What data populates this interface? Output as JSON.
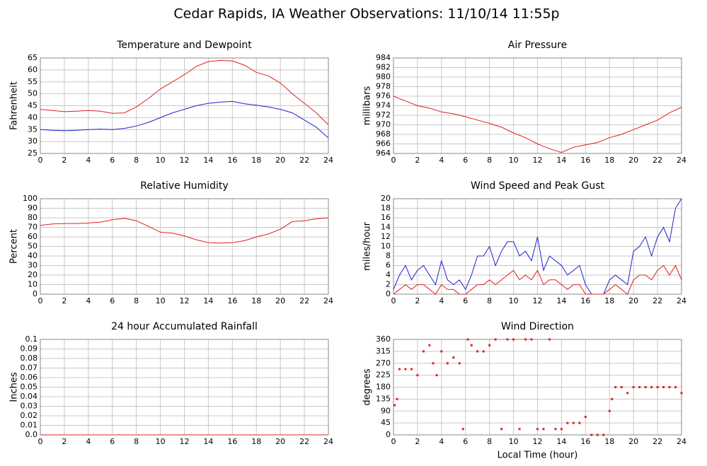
{
  "title": "Cedar Rapids, IA Weather Observations: 11/10/14 11:55p",
  "chart_data": [
    {
      "type": "line",
      "title": "Temperature and Dewpoint",
      "ylabel": "Fahrenheit",
      "x": [
        0,
        1,
        2,
        3,
        4,
        5,
        6,
        7,
        8,
        9,
        10,
        11,
        12,
        13,
        14,
        15,
        16,
        17,
        18,
        19,
        20,
        21,
        22,
        23,
        24
      ],
      "series": [
        {
          "color": "#e02020",
          "values": [
            43.5,
            43,
            42.5,
            42.7,
            43,
            42.7,
            41.8,
            42,
            44.5,
            48,
            52,
            55,
            58,
            61.5,
            63.5,
            64,
            63.8,
            62,
            59,
            57.5,
            54.5,
            50,
            46,
            42,
            37
          ]
        },
        {
          "color": "#2020d0",
          "values": [
            35,
            34.7,
            34.5,
            34.7,
            35,
            35.2,
            35,
            35.5,
            36.5,
            38,
            40,
            42,
            43.5,
            45,
            46,
            46.5,
            46.8,
            45.8,
            45.2,
            44.5,
            43.5,
            42,
            39,
            36,
            31.5
          ]
        }
      ],
      "xlim": [
        0,
        24
      ],
      "xticks": [
        0,
        2,
        4,
        6,
        8,
        10,
        12,
        14,
        16,
        18,
        20,
        22,
        24
      ],
      "ylim": [
        25,
        65
      ],
      "yticks": [
        25,
        30,
        35,
        40,
        45,
        50,
        55,
        60,
        65
      ],
      "grid": true
    },
    {
      "type": "line",
      "title": "Air Pressure",
      "ylabel": "millibars",
      "x": [
        0,
        1,
        2,
        3,
        4,
        5,
        6,
        7,
        8,
        9,
        10,
        11,
        12,
        13,
        14,
        15,
        16,
        17,
        18,
        19,
        20,
        21,
        22,
        23,
        24
      ],
      "series": [
        {
          "color": "#e02020",
          "values": [
            976,
            975,
            974,
            973.5,
            972.7,
            972.3,
            971.7,
            971,
            970.3,
            969.5,
            968.3,
            967.3,
            966,
            965,
            964.2,
            965.3,
            965.8,
            966.3,
            967.3,
            968,
            969,
            970,
            971,
            972.5,
            973.7
          ]
        }
      ],
      "xlim": [
        0,
        24
      ],
      "xticks": [
        0,
        2,
        4,
        6,
        8,
        10,
        12,
        14,
        16,
        18,
        20,
        22,
        24
      ],
      "ylim": [
        964,
        984
      ],
      "yticks": [
        964,
        966,
        968,
        970,
        972,
        974,
        976,
        978,
        980,
        982,
        984
      ],
      "grid": true
    },
    {
      "type": "line",
      "title": "Relative Humidity",
      "ylabel": "Percent",
      "x": [
        0,
        1,
        2,
        3,
        4,
        5,
        6,
        7,
        8,
        9,
        10,
        11,
        12,
        13,
        14,
        15,
        16,
        17,
        18,
        19,
        20,
        21,
        22,
        23,
        24
      ],
      "series": [
        {
          "color": "#e02020",
          "values": [
            72,
            73.5,
            74,
            74,
            74.5,
            75.5,
            78,
            79.5,
            77,
            71,
            65,
            64,
            61,
            57,
            54,
            53.5,
            54,
            56,
            60,
            63,
            68,
            76,
            77,
            79,
            80
          ]
        }
      ],
      "xlim": [
        0,
        24
      ],
      "xticks": [
        0,
        2,
        4,
        6,
        8,
        10,
        12,
        14,
        16,
        18,
        20,
        22,
        24
      ],
      "ylim": [
        0,
        100
      ],
      "yticks": [
        0,
        10,
        20,
        30,
        40,
        50,
        60,
        70,
        80,
        90,
        100
      ],
      "grid": true
    },
    {
      "type": "line",
      "title": "Wind Speed and Peak Gust",
      "ylabel": "miles/hour",
      "x": [
        0,
        0.5,
        1,
        1.5,
        2,
        2.5,
        3,
        3.5,
        4,
        4.5,
        5,
        5.5,
        6,
        6.5,
        7,
        7.5,
        8,
        8.5,
        9,
        9.5,
        10,
        10.5,
        11,
        11.5,
        12,
        12.5,
        13,
        13.5,
        14,
        14.5,
        15,
        15.5,
        16,
        16.5,
        17,
        17.5,
        18,
        18.5,
        19,
        19.5,
        20,
        20.5,
        21,
        21.5,
        22,
        22.5,
        23,
        23.5,
        24
      ],
      "series": [
        {
          "color": "#2020d0",
          "values": [
            1,
            4,
            6,
            3,
            5,
            6,
            4,
            2,
            7,
            3,
            2,
            3,
            1,
            4,
            8,
            8,
            10,
            6,
            9,
            11,
            11,
            8,
            9,
            7,
            12,
            5,
            8,
            7,
            6,
            4,
            5,
            6,
            2,
            0,
            0,
            0,
            3,
            4,
            3,
            2,
            9,
            10,
            12,
            8,
            12,
            14,
            11,
            18,
            20
          ]
        },
        {
          "color": "#e02020",
          "values": [
            0,
            1,
            2,
            1,
            2,
            2,
            1,
            0,
            2,
            1,
            1,
            0,
            0,
            1,
            2,
            2,
            3,
            2,
            3,
            4,
            5,
            3,
            4,
            3,
            5,
            2,
            3,
            3,
            2,
            1,
            2,
            2,
            0,
            0,
            0,
            0,
            1,
            2,
            1,
            0,
            3,
            4,
            4,
            3,
            5,
            6,
            4,
            6,
            3
          ]
        }
      ],
      "xlim": [
        0,
        24
      ],
      "xticks": [
        0,
        2,
        4,
        6,
        8,
        10,
        12,
        14,
        16,
        18,
        20,
        22,
        24
      ],
      "ylim": [
        0,
        20
      ],
      "yticks": [
        0,
        2,
        4,
        6,
        8,
        10,
        12,
        14,
        16,
        18,
        20
      ],
      "grid": true
    },
    {
      "type": "line",
      "title": "24 hour Accumulated Rainfall",
      "ylabel": "Inches",
      "x": [
        0,
        24
      ],
      "series": [
        {
          "color": "#e02020",
          "values": [
            0,
            0
          ]
        }
      ],
      "xlim": [
        0,
        24
      ],
      "xticks": [
        0,
        2,
        4,
        6,
        8,
        10,
        12,
        14,
        16,
        18,
        20,
        22,
        24
      ],
      "ylim": [
        0,
        0.1
      ],
      "yticks": [
        {
          "value": 0,
          "label": "0.0"
        },
        0.01,
        0.02,
        0.03,
        0.04,
        0.05,
        0.06,
        0.07,
        0.08,
        0.09,
        0.1
      ],
      "grid": true
    },
    {
      "type": "scatter",
      "title": "Wind Direction",
      "ylabel": "degrees",
      "xlabel": "Local Time (hour)",
      "x": [
        0.1,
        0.3,
        0.5,
        1,
        1.5,
        2,
        2.5,
        3,
        3.3,
        3.6,
        4,
        4.5,
        5,
        5.5,
        5.8,
        6.2,
        6.5,
        7,
        7.5,
        8,
        8.5,
        9,
        9.5,
        10,
        10.5,
        11,
        11.5,
        12,
        12.5,
        13,
        13.5,
        14,
        14.5,
        15,
        15.5,
        16,
        16.5,
        17,
        17.5,
        18,
        18.2,
        18.5,
        19,
        19.5,
        20,
        20.5,
        21,
        21.5,
        22,
        22.5,
        23,
        23.5,
        24
      ],
      "series": [
        {
          "color": "#e02020",
          "values": [
            112,
            135,
            248,
            248,
            248,
            225,
            315,
            338,
            270,
            225,
            315,
            270,
            292,
            270,
            22,
            360,
            338,
            315,
            315,
            338,
            360,
            22,
            360,
            360,
            22,
            360,
            360,
            22,
            22,
            360,
            22,
            22,
            45,
            45,
            45,
            68,
            0,
            0,
            0,
            90,
            135,
            180,
            180,
            158,
            180,
            180,
            180,
            180,
            180,
            180,
            180,
            180,
            158
          ]
        }
      ],
      "xlim": [
        0,
        24
      ],
      "xticks": [
        0,
        2,
        4,
        6,
        8,
        10,
        12,
        14,
        16,
        18,
        20,
        22,
        24
      ],
      "ylim": [
        0,
        360
      ],
      "yticks": [
        0,
        45,
        90,
        135,
        180,
        225,
        270,
        315,
        360
      ],
      "grid": true
    }
  ]
}
